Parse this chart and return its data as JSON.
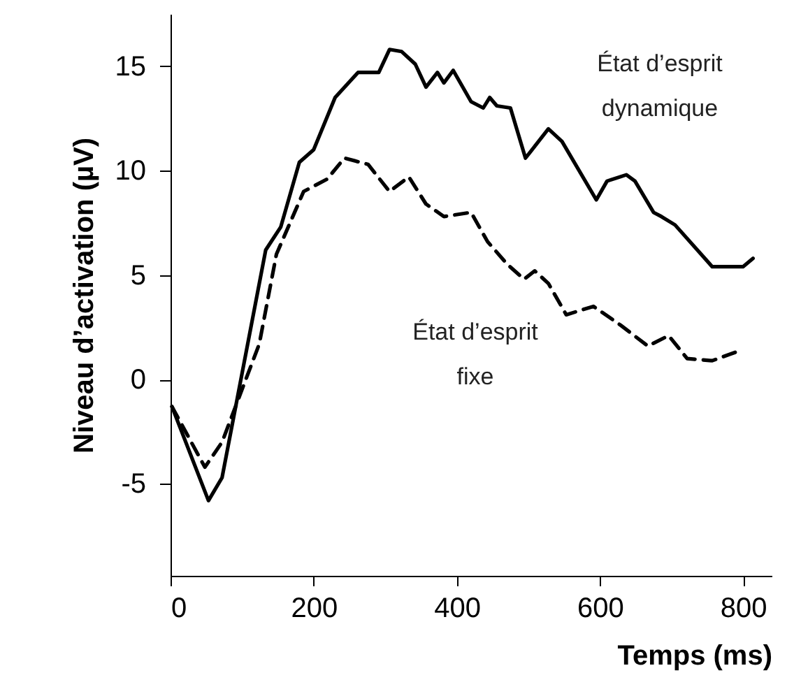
{
  "chart_data": {
    "type": "line",
    "xlabel": "Temps (ms)",
    "ylabel": "Niveau d’activation (µV)",
    "xlim": [
      0,
      840
    ],
    "ylim": [
      -9.4,
      17.5
    ],
    "xticks": [
      0,
      200,
      400,
      600,
      800
    ],
    "yticks": [
      -5,
      0,
      5,
      10,
      15
    ],
    "grid": false,
    "marker": "none",
    "series": [
      {
        "color": "#000000",
        "line_style": "solid",
        "x": [
          2,
          53,
          72,
          133,
          154,
          180,
          200,
          230,
          262,
          291,
          306,
          323,
          342,
          357,
          373,
          382,
          395,
          420,
          437,
          446,
          456,
          475,
          496,
          528,
          547,
          595,
          610,
          637,
          649,
          675,
          686,
          705,
          757,
          800,
          814
        ],
        "values": [
          -1.3,
          -5.8,
          -4.7,
          6.2,
          7.3,
          10.4,
          11,
          13.5,
          14.7,
          14.7,
          15.8,
          15.7,
          15.1,
          14.0,
          14.7,
          14.2,
          14.8,
          13.3,
          13.0,
          13.5,
          13.1,
          13.0,
          10.6,
          12.0,
          11.4,
          8.6,
          9.5,
          9.8,
          9.5,
          8.0,
          7.8,
          7.4,
          5.4,
          5.4,
          5.8
        ]
      },
      {
        "color": "#000000",
        "line_style": "dashed",
        "x": [
          2,
          48,
          72,
          124,
          148,
          186,
          219,
          243,
          276,
          306,
          333,
          357,
          382,
          420,
          443,
          471,
          494,
          509,
          528,
          553,
          591,
          629,
          667,
          696,
          722,
          757,
          789
        ],
        "values": [
          -1.3,
          -4.2,
          -3.0,
          1.7,
          6.0,
          9.0,
          9.6,
          10.6,
          10.3,
          9.0,
          9.7,
          8.4,
          7.8,
          8.0,
          6.6,
          5.5,
          4.8,
          5.2,
          4.6,
          3.1,
          3.5,
          2.6,
          1.6,
          2.1,
          1.0,
          0.9,
          1.3
        ]
      }
    ],
    "annotations": [
      "État d’esprit\ndynamique",
      "État d’esprit\nfixe"
    ]
  }
}
